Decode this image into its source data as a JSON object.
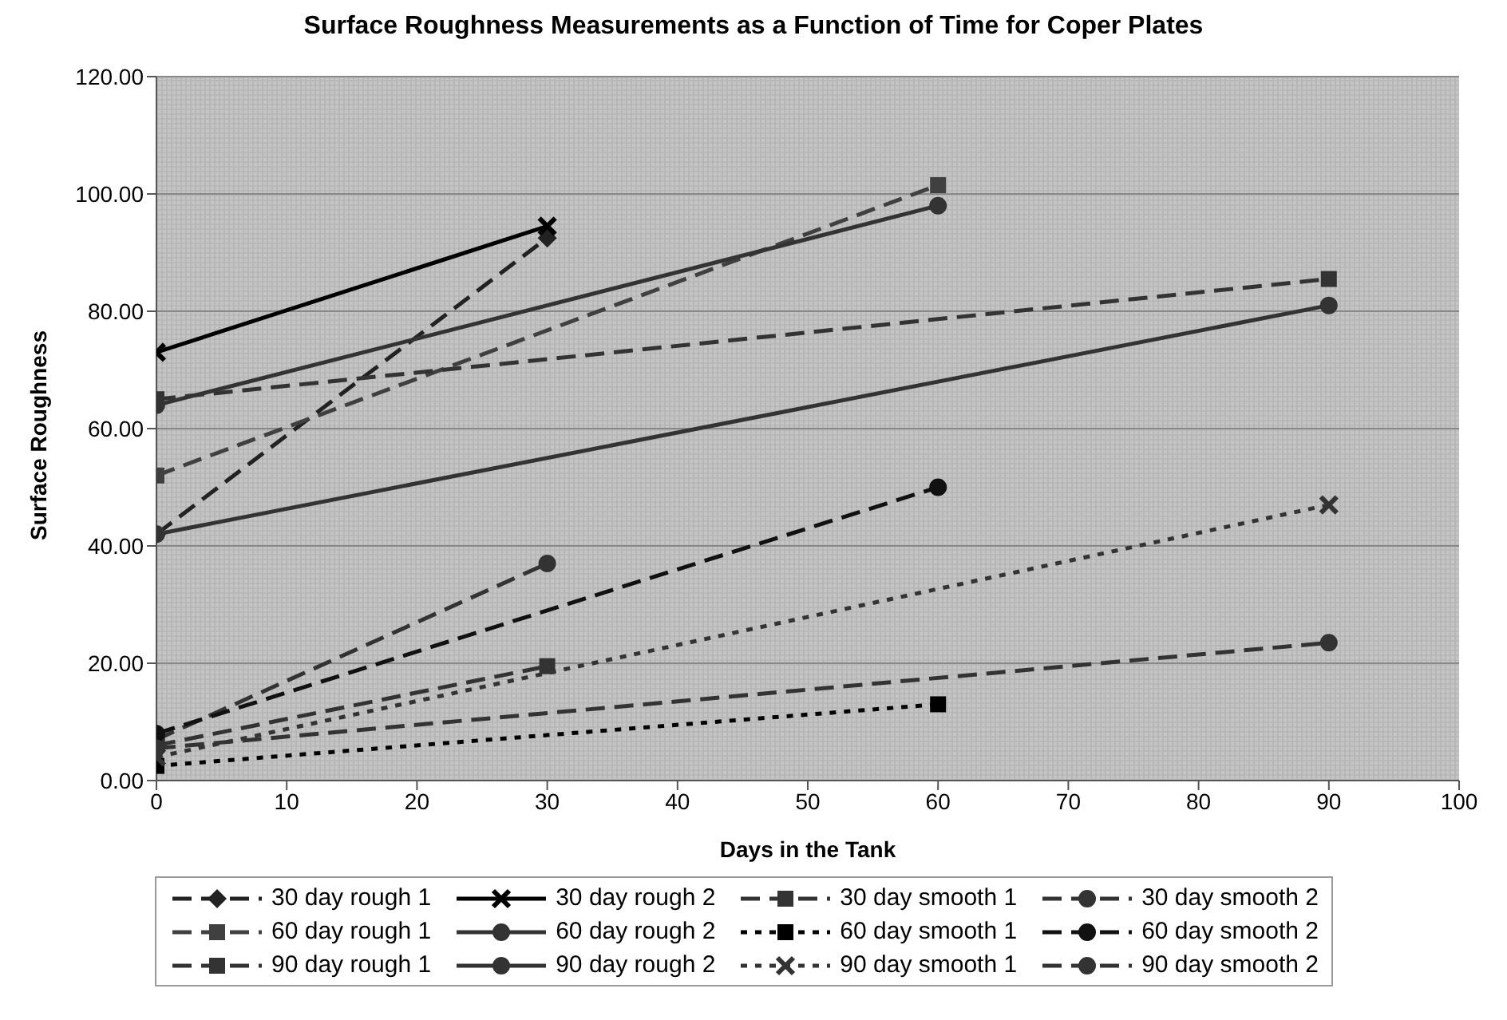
{
  "chart_data": {
    "type": "line",
    "title": "Surface Roughness Measurements as a Function of Time for Coper Plates",
    "xlabel": "Days in the Tank",
    "ylabel": "Surface Roughness",
    "xlim": [
      0,
      100
    ],
    "xticks": [
      0,
      10,
      20,
      30,
      40,
      50,
      60,
      70,
      80,
      90,
      100
    ],
    "ylim": [
      0,
      120
    ],
    "yticks": [
      {
        "value": 0,
        "label": "0.00"
      },
      {
        "value": 20,
        "label": "20.00"
      },
      {
        "value": 40,
        "label": "40.00"
      },
      {
        "value": 60,
        "label": "60.00"
      },
      {
        "value": 80,
        "label": "80.00"
      },
      {
        "value": 100,
        "label": "100.00"
      },
      {
        "value": 120,
        "label": "120.00"
      }
    ],
    "grid": "y",
    "legend": "bottom",
    "series": [
      {
        "name": "30 day rough 1",
        "color": "#222222",
        "x": [
          0,
          30
        ],
        "values": [
          42,
          92.5
        ],
        "marker": "diamond",
        "line_style": "dashed"
      },
      {
        "name": "30 day rough 2",
        "color": "#000000",
        "x": [
          0,
          30
        ],
        "values": [
          73,
          94.5
        ],
        "marker": "cross",
        "line_style": "solid"
      },
      {
        "name": "30 day smooth 1",
        "color": "#333333",
        "x": [
          0,
          30
        ],
        "values": [
          6,
          19.5
        ],
        "marker": "square",
        "line_style": "dashed"
      },
      {
        "name": "30 day smooth 2",
        "color": "#333333",
        "x": [
          0,
          30
        ],
        "values": [
          7,
          37
        ],
        "marker": "circle",
        "line_style": "dashed"
      },
      {
        "name": "60 day rough 1",
        "color": "#404040",
        "x": [
          0,
          60
        ],
        "values": [
          52,
          101.5
        ],
        "marker": "square",
        "line_style": "dashed"
      },
      {
        "name": "60 day rough 2",
        "color": "#333333",
        "x": [
          0,
          60
        ],
        "values": [
          64,
          98
        ],
        "marker": "circle",
        "line_style": "solid"
      },
      {
        "name": "60 day smooth 1",
        "color": "#000000",
        "x": [
          0,
          60
        ],
        "values": [
          2.5,
          13
        ],
        "marker": "square",
        "line_style": "dotted"
      },
      {
        "name": "60 day smooth 2",
        "color": "#111111",
        "x": [
          0,
          60
        ],
        "values": [
          8,
          50
        ],
        "marker": "circle",
        "line_style": "dashed"
      },
      {
        "name": "90 day rough 1",
        "color": "#333333",
        "x": [
          0,
          90
        ],
        "values": [
          65,
          85.5
        ],
        "marker": "square",
        "line_style": "dashed"
      },
      {
        "name": "90 day rough 2",
        "color": "#333333",
        "x": [
          0,
          90
        ],
        "values": [
          42,
          81
        ],
        "marker": "circle",
        "line_style": "solid"
      },
      {
        "name": "90 day smooth 1",
        "color": "#333333",
        "x": [
          0,
          90
        ],
        "values": [
          4,
          47
        ],
        "marker": "cross",
        "line_style": "dotted"
      },
      {
        "name": "90 day smooth 2",
        "color": "#333333",
        "x": [
          0,
          90
        ],
        "values": [
          5.5,
          23.5
        ],
        "marker": "circle",
        "line_style": "dashed"
      }
    ]
  }
}
